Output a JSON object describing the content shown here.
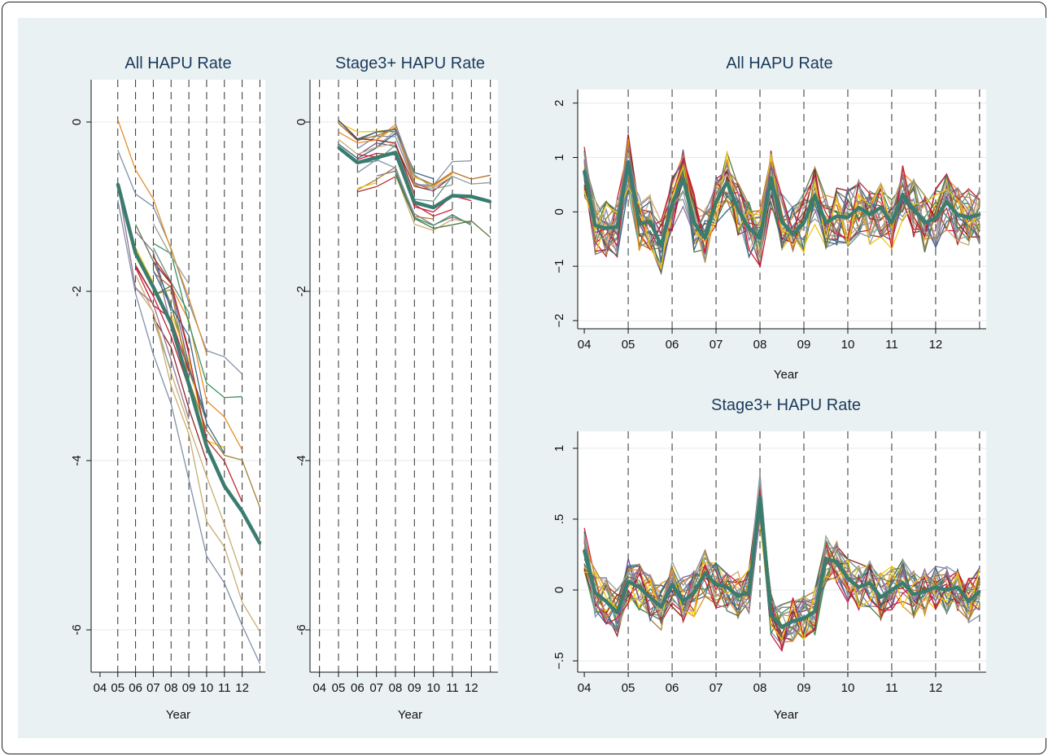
{
  "colors": {
    "background": "#eaf1f3",
    "plot_bg": "#ffffff",
    "mean_line": "#3a7c6e",
    "title": "#1b3a5c",
    "palette": [
      "#8b1a1a",
      "#e08a1e",
      "#7b8ba5",
      "#4b6e3a",
      "#c7a96b",
      "#2f5f7f",
      "#c8102e",
      "#8d9b8e",
      "#f2c200",
      "#8b6e8f",
      "#b5651d",
      "#5e8c7a",
      "#9c7b2f",
      "#6a4c93",
      "#2e8b57",
      "#b22222"
    ]
  },
  "chart_data": [
    {
      "type": "line",
      "title": "All HAPU Rate",
      "xlabel": "Year",
      "categories": [
        "04",
        "05",
        "06",
        "07",
        "08",
        "09",
        "10",
        "11",
        "12"
      ],
      "ylim": [
        -6.5,
        0.5
      ],
      "yticks": [
        0,
        -2,
        -4,
        -6
      ],
      "ytick_labels": [
        "0",
        "-2",
        "-4",
        "-6"
      ],
      "mean_series": {
        "x": [
          5,
          6,
          7,
          8,
          9,
          10,
          11,
          12,
          13
        ],
        "values": [
          -0.73,
          -1.55,
          -1.95,
          -2.38,
          -3.1,
          -3.83,
          -4.3,
          -4.6,
          -4.98
        ]
      }
    },
    {
      "type": "line",
      "title": "Stage3+ HAPU Rate",
      "xlabel": "Year",
      "categories": [
        "04",
        "05",
        "06",
        "07",
        "08",
        "09",
        "10",
        "11",
        "12"
      ],
      "ylim": [
        -6.5,
        0.5
      ],
      "yticks": [
        0,
        -2,
        -4,
        -6
      ],
      "ytick_labels": [
        "0",
        "-2",
        "-4",
        "-6"
      ],
      "mean_series": {
        "x": [
          5,
          6,
          7,
          8,
          9,
          10,
          11,
          12,
          13
        ],
        "values": [
          -0.3,
          -0.48,
          -0.42,
          -0.36,
          -0.95,
          -1.01,
          -0.87,
          -0.88,
          -0.94
        ]
      }
    },
    {
      "type": "line",
      "title": "All HAPU Rate",
      "xlabel": "Year",
      "categories": [
        "04",
        "05",
        "06",
        "07",
        "08",
        "09",
        "10",
        "11",
        "12"
      ],
      "ylim": [
        -2.15,
        2.25
      ],
      "yticks": [
        2,
        1,
        0,
        -1,
        -2
      ],
      "ytick_labels": [
        "2",
        "1",
        "0",
        "−1",
        "−2"
      ],
      "mean_series": {
        "x": [
          4.0,
          4.25,
          4.5,
          4.75,
          5.0,
          5.25,
          5.5,
          5.75,
          6.0,
          6.25,
          6.5,
          6.75,
          7.0,
          7.25,
          7.5,
          7.75,
          8.0,
          8.25,
          8.5,
          8.75,
          9.0,
          9.25,
          9.5,
          9.75,
          10.0,
          10.25,
          10.5,
          10.75,
          11.0,
          11.25,
          11.5,
          11.75,
          12.0,
          12.25,
          12.5,
          12.75,
          13.0
        ],
        "values": [
          0.75,
          -0.25,
          -0.3,
          -0.28,
          0.92,
          -0.22,
          -0.18,
          -0.62,
          0.15,
          0.62,
          -0.2,
          -0.48,
          0.18,
          0.55,
          0.05,
          -0.3,
          -0.48,
          0.62,
          -0.18,
          -0.42,
          -0.2,
          0.3,
          -0.2,
          -0.08,
          -0.1,
          0.08,
          -0.05,
          0.08,
          -0.2,
          0.32,
          0.05,
          -0.2,
          -0.12,
          0.18,
          -0.05,
          -0.1,
          -0.05
        ]
      }
    },
    {
      "type": "line",
      "title": "Stage3+ HAPU Rate",
      "xlabel": "Year",
      "categories": [
        "04",
        "05",
        "06",
        "07",
        "08",
        "09",
        "10",
        "11",
        "12"
      ],
      "ylim": [
        -0.58,
        1.12
      ],
      "yticks": [
        1,
        0.5,
        0,
        -0.5
      ],
      "ytick_labels": [
        "1",
        ".5",
        "0",
        "−.5"
      ],
      "mean_series": {
        "x": [
          4.0,
          4.25,
          4.5,
          4.75,
          5.0,
          5.25,
          5.5,
          5.75,
          6.0,
          6.25,
          6.5,
          6.75,
          7.0,
          7.25,
          7.5,
          7.75,
          8.0,
          8.25,
          8.5,
          8.75,
          9.0,
          9.25,
          9.5,
          9.75,
          10.0,
          10.25,
          10.5,
          10.75,
          11.0,
          11.25,
          11.5,
          11.75,
          12.0,
          12.25,
          12.5,
          12.75,
          13.0
        ],
        "values": [
          0.28,
          -0.02,
          -0.08,
          -0.16,
          0.06,
          0.02,
          -0.05,
          -0.12,
          0.04,
          -0.08,
          -0.02,
          0.12,
          0.04,
          0.02,
          -0.04,
          -0.02,
          0.65,
          -0.18,
          -0.26,
          -0.22,
          -0.2,
          -0.15,
          0.22,
          0.2,
          0.08,
          0.02,
          0.05,
          -0.05,
          0.0,
          0.05,
          -0.03,
          -0.01,
          0.02,
          0.0,
          0.02,
          -0.08,
          -0.01
        ]
      }
    }
  ]
}
